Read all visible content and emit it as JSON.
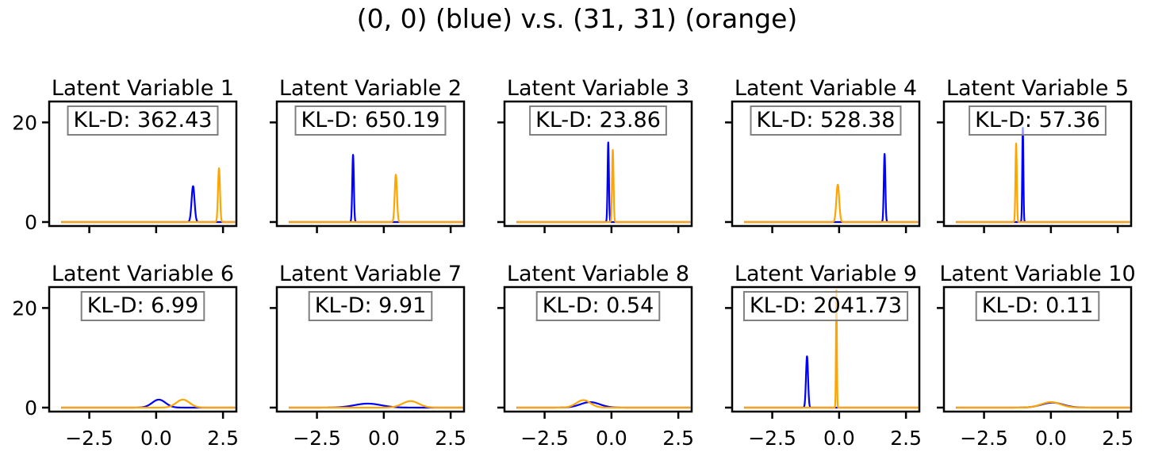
{
  "figure": {
    "title": "(0, 0) (blue) v.s. (31, 31) (orange)"
  },
  "colors": {
    "blue": "#0000ff",
    "orange": "#ffa500",
    "axes": "#000000",
    "box_edge": "#808080"
  },
  "chart_data": [
    {
      "type": "line",
      "title": "Latent Variable 1",
      "kl_label": "KL-D: 362.43",
      "xlim": [
        -4.0,
        3.0
      ],
      "ylim": [
        -0.8,
        24.2
      ],
      "xticks": [
        -2.5,
        0.0,
        2.5
      ],
      "xtick_labels": [
        "−2.5",
        "0.0",
        "2.5"
      ],
      "yticks": [
        0,
        20
      ],
      "ytick_labels": [
        "0",
        "20"
      ],
      "series": [
        {
          "color": "blue",
          "mu": 1.38,
          "peak": 7.2
        },
        {
          "color": "orange",
          "mu": 2.35,
          "peak": 10.8
        }
      ]
    },
    {
      "type": "line",
      "title": "Latent Variable 2",
      "kl_label": "KL-D: 650.19",
      "xlim": [
        -4.0,
        3.0
      ],
      "ylim": [
        -0.8,
        24.2
      ],
      "xticks": [
        -2.5,
        0.0,
        2.5
      ],
      "xtick_labels": [
        "−2.5",
        "0.0",
        "2.5"
      ],
      "yticks": [
        0,
        20
      ],
      "ytick_labels": [
        "0",
        "20"
      ],
      "series": [
        {
          "color": "blue",
          "mu": -1.15,
          "peak": 13.5
        },
        {
          "color": "orange",
          "mu": 0.45,
          "peak": 9.5
        }
      ]
    },
    {
      "type": "line",
      "title": "Latent Variable 3",
      "kl_label": "KL-D: 23.86",
      "xlim": [
        -4.0,
        3.0
      ],
      "ylim": [
        -0.8,
        24.2
      ],
      "xticks": [
        -2.5,
        0.0,
        2.5
      ],
      "xtick_labels": [
        "−2.5",
        "0.0",
        "2.5"
      ],
      "yticks": [
        0,
        20
      ],
      "ytick_labels": [
        "0",
        "20"
      ],
      "series": [
        {
          "color": "blue",
          "mu": -0.12,
          "peak": 16.0
        },
        {
          "color": "orange",
          "mu": 0.05,
          "peak": 14.5
        }
      ]
    },
    {
      "type": "line",
      "title": "Latent Variable 4",
      "kl_label": "KL-D: 528.38",
      "xlim": [
        -4.0,
        3.0
      ],
      "ylim": [
        -0.8,
        24.2
      ],
      "xticks": [
        -2.5,
        0.0,
        2.5
      ],
      "xtick_labels": [
        "−2.5",
        "0.0",
        "2.5"
      ],
      "yticks": [
        0,
        20
      ],
      "ytick_labels": [
        "0",
        "20"
      ],
      "series": [
        {
          "color": "blue",
          "mu": 1.7,
          "peak": 13.7
        },
        {
          "color": "orange",
          "mu": -0.05,
          "peak": 7.5
        }
      ]
    },
    {
      "type": "line",
      "title": "Latent Variable 5",
      "kl_label": "KL-D: 57.36",
      "xlim": [
        -4.0,
        3.0
      ],
      "ylim": [
        -0.8,
        24.2
      ],
      "xticks": [
        -2.5,
        0.0,
        2.5
      ],
      "xtick_labels": [
        "−2.5",
        "0.0",
        "2.5"
      ],
      "yticks": [
        0,
        20
      ],
      "ytick_labels": [
        "0",
        "20"
      ],
      "series": [
        {
          "color": "blue",
          "mu": -1.05,
          "peak": 19.0
        },
        {
          "color": "orange",
          "mu": -1.3,
          "peak": 15.8
        }
      ]
    },
    {
      "type": "line",
      "title": "Latent Variable 6",
      "kl_label": "KL-D: 6.99",
      "xlim": [
        -4.0,
        3.0
      ],
      "ylim": [
        -0.8,
        24.2
      ],
      "xticks": [
        -2.5,
        0.0,
        2.5
      ],
      "xtick_labels": [
        "−2.5",
        "0.0",
        "2.5"
      ],
      "yticks": [
        0,
        20
      ],
      "ytick_labels": [
        "0",
        "20"
      ],
      "series": [
        {
          "color": "blue",
          "mu": 0.1,
          "peak": 1.6
        },
        {
          "color": "orange",
          "mu": 1.0,
          "peak": 1.6
        }
      ]
    },
    {
      "type": "line",
      "title": "Latent Variable 7",
      "kl_label": "KL-D: 9.91",
      "xlim": [
        -4.0,
        3.0
      ],
      "ylim": [
        -0.8,
        24.2
      ],
      "xticks": [
        -2.5,
        0.0,
        2.5
      ],
      "xtick_labels": [
        "−2.5",
        "0.0",
        "2.5"
      ],
      "yticks": [
        0,
        20
      ],
      "ytick_labels": [
        "0",
        "20"
      ],
      "series": [
        {
          "color": "blue",
          "mu": -0.6,
          "peak": 0.8
        },
        {
          "color": "orange",
          "mu": 1.0,
          "peak": 1.3
        }
      ]
    },
    {
      "type": "line",
      "title": "Latent Variable 8",
      "kl_label": "KL-D: 0.54",
      "xlim": [
        -4.0,
        3.0
      ],
      "ylim": [
        -0.8,
        24.2
      ],
      "xticks": [
        -2.5,
        0.0,
        2.5
      ],
      "xtick_labels": [
        "−2.5",
        "0.0",
        "2.5"
      ],
      "yticks": [
        0,
        20
      ],
      "ytick_labels": [
        "0",
        "20"
      ],
      "series": [
        {
          "color": "blue",
          "mu": -0.8,
          "peak": 1.1
        },
        {
          "color": "orange",
          "mu": -1.05,
          "peak": 1.5
        }
      ]
    },
    {
      "type": "line",
      "title": "Latent Variable 9",
      "kl_label": "KL-D: 2041.73",
      "xlim": [
        -4.0,
        3.0
      ],
      "ylim": [
        -0.8,
        24.2
      ],
      "xticks": [
        -2.5,
        0.0,
        2.5
      ],
      "xtick_labels": [
        "−2.5",
        "0.0",
        "2.5"
      ],
      "yticks": [
        0,
        20
      ],
      "ytick_labels": [
        "0",
        "20"
      ],
      "series": [
        {
          "color": "blue",
          "mu": -1.2,
          "peak": 10.3
        },
        {
          "color": "orange",
          "mu": -0.1,
          "peak": 23.5
        }
      ]
    },
    {
      "type": "line",
      "title": "Latent Variable 10",
      "kl_label": "KL-D: 0.11",
      "xlim": [
        -4.0,
        3.0
      ],
      "ylim": [
        -0.8,
        24.2
      ],
      "xticks": [
        -2.5,
        0.0,
        2.5
      ],
      "xtick_labels": [
        "−2.5",
        "0.0",
        "2.5"
      ],
      "yticks": [
        0,
        20
      ],
      "ytick_labels": [
        "0",
        "20"
      ],
      "series": [
        {
          "color": "blue",
          "mu": 0.05,
          "peak": 1.0
        },
        {
          "color": "orange",
          "mu": 0.0,
          "peak": 1.1
        }
      ]
    }
  ]
}
